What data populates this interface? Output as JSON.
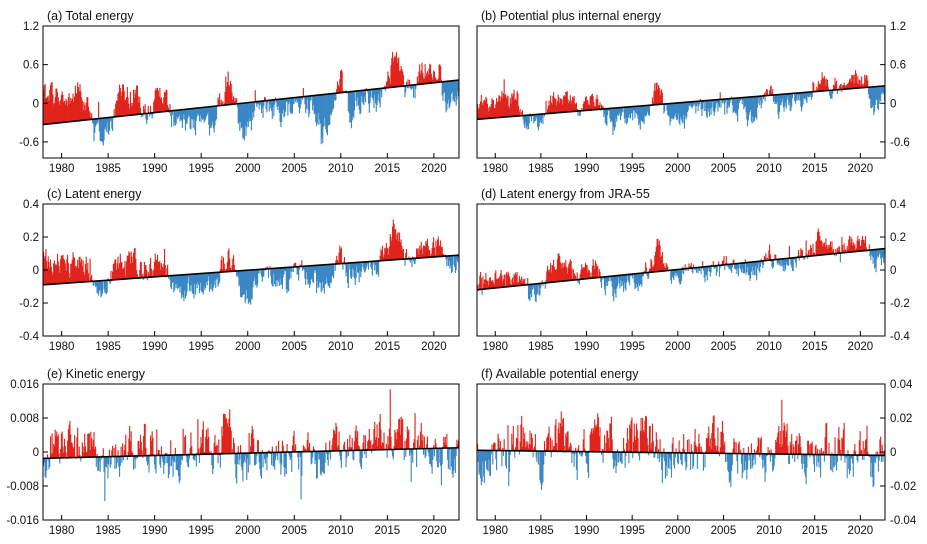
{
  "colors": {
    "positive": "#e0241c",
    "negative": "#3a87c4",
    "trend": "#000000"
  },
  "chart_data": [
    {
      "type": "area",
      "title": "(a) Total energy",
      "x_ticks": [
        "1980",
        "1985",
        "1990",
        "1995",
        "2000",
        "2005",
        "2010",
        "2015",
        "2020"
      ],
      "y_ticks": [
        "-0.6",
        "0",
        "0.6",
        "1.2"
      ],
      "y_axis_side": "left",
      "xlim": [
        1978.0,
        2022.7
      ],
      "ylim": [
        -0.85,
        1.2
      ],
      "trend": {
        "start": -0.33,
        "end": 0.36
      },
      "baseline_segments": [
        [
          1978.0,
          0.1
        ],
        [
          1979.0,
          0.15
        ],
        [
          1980.0,
          0.05
        ],
        [
          1981.0,
          0.08
        ],
        [
          1982.0,
          0.22
        ],
        [
          1982.7,
          -0.05
        ],
        [
          1983.5,
          -0.35
        ],
        [
          1984.3,
          -0.5
        ],
        [
          1985.0,
          -0.42
        ],
        [
          1986.0,
          0.05
        ],
        [
          1987.0,
          0.18
        ],
        [
          1988.0,
          0.12
        ],
        [
          1989.0,
          -0.2
        ],
        [
          1990.0,
          0.08
        ],
        [
          1991.0,
          0.12
        ],
        [
          1992.0,
          -0.28
        ],
        [
          1993.0,
          -0.4
        ],
        [
          1994.0,
          -0.32
        ],
        [
          1995.0,
          -0.22
        ],
        [
          1996.0,
          -0.38
        ],
        [
          1997.0,
          -0.02
        ],
        [
          1997.9,
          0.45
        ],
        [
          1998.5,
          0.05
        ],
        [
          1999.3,
          -0.42
        ],
        [
          2000.3,
          -0.36
        ],
        [
          2001.0,
          -0.1
        ],
        [
          2002.0,
          -0.05
        ],
        [
          2003.0,
          -0.08
        ],
        [
          2004.0,
          -0.18
        ],
        [
          2005.0,
          -0.02
        ],
        [
          2006.0,
          -0.1
        ],
        [
          2007.0,
          -0.05
        ],
        [
          2008.0,
          -0.4
        ],
        [
          2009.0,
          -0.08
        ],
        [
          2010.0,
          0.3
        ],
        [
          2011.0,
          -0.18
        ],
        [
          2012.0,
          -0.05
        ],
        [
          2013.0,
          0.0
        ],
        [
          2014.0,
          0.05
        ],
        [
          2015.0,
          0.3
        ],
        [
          2015.7,
          0.75
        ],
        [
          2016.3,
          0.55
        ],
        [
          2017.0,
          0.25
        ],
        [
          2018.0,
          0.2
        ],
        [
          2019.0,
          0.55
        ],
        [
          2020.0,
          0.48
        ],
        [
          2020.5,
          0.6
        ],
        [
          2021.0,
          0.15
        ],
        [
          2021.5,
          -0.12
        ],
        [
          2022.2,
          0.05
        ],
        [
          2022.7,
          0.1
        ]
      ],
      "noise": 0.16
    },
    {
      "type": "area",
      "title": "(b) Potential plus internal energy",
      "x_ticks": [
        "1980",
        "1985",
        "1990",
        "1995",
        "2000",
        "2005",
        "2010",
        "2015",
        "2020"
      ],
      "y_ticks": [
        "-0.6",
        "0",
        "0.6",
        "1.2"
      ],
      "y_axis_side": "right",
      "xlim": [
        1978.0,
        2022.7
      ],
      "ylim": [
        -0.85,
        1.2
      ],
      "trend": {
        "start": -0.25,
        "end": 0.27
      },
      "baseline_segments": [
        [
          1978.0,
          0.0
        ],
        [
          1979.0,
          0.05
        ],
        [
          1980.0,
          0.0
        ],
        [
          1981.0,
          0.03
        ],
        [
          1982.0,
          0.12
        ],
        [
          1982.7,
          -0.05
        ],
        [
          1983.5,
          -0.28
        ],
        [
          1984.3,
          -0.38
        ],
        [
          1985.0,
          -0.3
        ],
        [
          1986.0,
          0.02
        ],
        [
          1987.0,
          0.1
        ],
        [
          1988.0,
          0.06
        ],
        [
          1989.0,
          -0.15
        ],
        [
          1990.0,
          0.05
        ],
        [
          1991.0,
          0.08
        ],
        [
          1992.0,
          -0.2
        ],
        [
          1993.0,
          -0.28
        ],
        [
          1994.0,
          -0.24
        ],
        [
          1995.0,
          -0.16
        ],
        [
          1996.0,
          -0.28
        ],
        [
          1997.0,
          -0.02
        ],
        [
          1997.9,
          0.32
        ],
        [
          1998.5,
          0.02
        ],
        [
          1999.3,
          -0.32
        ],
        [
          2000.3,
          -0.28
        ],
        [
          2001.0,
          -0.08
        ],
        [
          2002.0,
          -0.04
        ],
        [
          2003.0,
          -0.06
        ],
        [
          2004.0,
          -0.14
        ],
        [
          2005.0,
          -0.02
        ],
        [
          2006.0,
          -0.08
        ],
        [
          2007.0,
          -0.04
        ],
        [
          2008.0,
          -0.3
        ],
        [
          2009.0,
          -0.06
        ],
        [
          2010.0,
          0.22
        ],
        [
          2011.0,
          -0.14
        ],
        [
          2012.0,
          -0.04
        ],
        [
          2013.0,
          0.0
        ],
        [
          2014.0,
          0.03
        ],
        [
          2015.0,
          0.22
        ],
        [
          2015.7,
          0.52
        ],
        [
          2016.3,
          0.4
        ],
        [
          2017.0,
          0.18
        ],
        [
          2018.0,
          0.14
        ],
        [
          2019.0,
          0.42
        ],
        [
          2020.0,
          0.36
        ],
        [
          2020.5,
          0.45
        ],
        [
          2021.0,
          0.1
        ],
        [
          2021.5,
          -0.1
        ],
        [
          2022.2,
          0.04
        ],
        [
          2022.7,
          0.08
        ]
      ],
      "noise": 0.12
    },
    {
      "type": "area",
      "title": "(c) Latent energy",
      "x_ticks": [
        "1980",
        "1985",
        "1990",
        "1995",
        "2000",
        "2005",
        "2010",
        "2015",
        "2020"
      ],
      "y_ticks": [
        "-0.4",
        "-0.2",
        "0",
        "0.2",
        "0.4"
      ],
      "y_axis_side": "left",
      "xlim": [
        1978.0,
        2022.7
      ],
      "ylim": [
        -0.4,
        0.4
      ],
      "trend": {
        "start": -0.09,
        "end": 0.09
      },
      "baseline_segments": [
        [
          1978.0,
          0.05
        ],
        [
          1979.0,
          0.06
        ],
        [
          1980.0,
          0.04
        ],
        [
          1981.0,
          0.03
        ],
        [
          1982.0,
          0.08
        ],
        [
          1982.7,
          0.02
        ],
        [
          1983.5,
          -0.04
        ],
        [
          1984.3,
          -0.1
        ],
        [
          1985.0,
          -0.06
        ],
        [
          1986.0,
          0.03
        ],
        [
          1987.0,
          0.1
        ],
        [
          1988.0,
          0.06
        ],
        [
          1989.0,
          -0.04
        ],
        [
          1990.0,
          0.04
        ],
        [
          1991.0,
          0.05
        ],
        [
          1992.0,
          -0.14
        ],
        [
          1993.0,
          -0.16
        ],
        [
          1994.0,
          -0.12
        ],
        [
          1995.0,
          -0.08
        ],
        [
          1996.0,
          -0.14
        ],
        [
          1997.0,
          -0.02
        ],
        [
          1997.9,
          0.1
        ],
        [
          1998.5,
          0.0
        ],
        [
          1999.3,
          -0.16
        ],
        [
          2000.3,
          -0.12
        ],
        [
          2001.0,
          -0.05
        ],
        [
          2002.0,
          -0.02
        ],
        [
          2003.0,
          -0.04
        ],
        [
          2004.0,
          -0.06
        ],
        [
          2005.0,
          0.0
        ],
        [
          2006.0,
          -0.03
        ],
        [
          2007.0,
          -0.02
        ],
        [
          2008.0,
          -0.12
        ],
        [
          2009.0,
          -0.02
        ],
        [
          2010.0,
          0.07
        ],
        [
          2011.0,
          -0.05
        ],
        [
          2012.0,
          -0.02
        ],
        [
          2013.0,
          0.0
        ],
        [
          2014.0,
          0.02
        ],
        [
          2015.0,
          0.1
        ],
        [
          2015.7,
          0.24
        ],
        [
          2016.3,
          0.18
        ],
        [
          2017.0,
          0.1
        ],
        [
          2018.0,
          0.09
        ],
        [
          2019.0,
          0.15
        ],
        [
          2020.0,
          0.14
        ],
        [
          2020.5,
          0.16
        ],
        [
          2021.0,
          0.06
        ],
        [
          2021.5,
          0.02
        ],
        [
          2022.2,
          0.04
        ],
        [
          2022.7,
          0.06
        ]
      ],
      "noise": 0.06
    },
    {
      "type": "area",
      "title": "(d) Latent energy from JRA-55",
      "x_ticks": [
        "1980",
        "1985",
        "1990",
        "1995",
        "2000",
        "2005",
        "2010",
        "2015",
        "2020"
      ],
      "y_ticks": [
        "-0.4",
        "-0.2",
        "0",
        "0.2",
        "0.4"
      ],
      "y_axis_side": "right",
      "xlim": [
        1978.0,
        2022.7
      ],
      "ylim": [
        -0.4,
        0.4
      ],
      "trend": {
        "start": -0.12,
        "end": 0.13
      },
      "baseline_segments": [
        [
          1978.0,
          -0.1
        ],
        [
          1979.0,
          -0.05
        ],
        [
          1980.0,
          -0.04
        ],
        [
          1981.0,
          -0.06
        ],
        [
          1982.0,
          -0.02
        ],
        [
          1982.7,
          -0.08
        ],
        [
          1983.5,
          -0.14
        ],
        [
          1984.3,
          -0.18
        ],
        [
          1985.0,
          -0.12
        ],
        [
          1986.0,
          -0.02
        ],
        [
          1987.0,
          0.06
        ],
        [
          1988.0,
          0.02
        ],
        [
          1989.0,
          -0.06
        ],
        [
          1990.0,
          0.0
        ],
        [
          1991.0,
          0.02
        ],
        [
          1992.0,
          -0.1
        ],
        [
          1993.0,
          -0.12
        ],
        [
          1994.0,
          -0.08
        ],
        [
          1995.0,
          -0.05
        ],
        [
          1996.0,
          -0.08
        ],
        [
          1997.0,
          0.02
        ],
        [
          1997.9,
          0.16
        ],
        [
          1998.5,
          0.04
        ],
        [
          1999.3,
          -0.1
        ],
        [
          2000.3,
          -0.06
        ],
        [
          2001.0,
          -0.02
        ],
        [
          2002.0,
          0.01
        ],
        [
          2003.0,
          0.0
        ],
        [
          2004.0,
          -0.02
        ],
        [
          2005.0,
          0.03
        ],
        [
          2006.0,
          0.02
        ],
        [
          2007.0,
          0.03
        ],
        [
          2008.0,
          -0.04
        ],
        [
          2009.0,
          0.03
        ],
        [
          2010.0,
          0.12
        ],
        [
          2011.0,
          0.02
        ],
        [
          2012.0,
          0.05
        ],
        [
          2013.0,
          0.06
        ],
        [
          2014.0,
          0.08
        ],
        [
          2015.0,
          0.14
        ],
        [
          2015.7,
          0.24
        ],
        [
          2016.3,
          0.2
        ],
        [
          2017.0,
          0.14
        ],
        [
          2018.0,
          0.15
        ],
        [
          2019.0,
          0.18
        ],
        [
          2020.0,
          0.17
        ],
        [
          2020.5,
          0.19
        ],
        [
          2021.0,
          0.1
        ],
        [
          2021.5,
          0.04
        ],
        [
          2022.2,
          0.06
        ],
        [
          2022.7,
          0.07
        ]
      ],
      "noise": 0.05
    },
    {
      "type": "area",
      "title": "(e) Kinetic energy",
      "x_ticks": [
        "1980",
        "1985",
        "1990",
        "1995",
        "2000",
        "2005",
        "2010",
        "2015",
        "2020"
      ],
      "y_ticks": [
        "-0.016",
        "-0.008",
        "0",
        "0.008",
        "0.016"
      ],
      "y_axis_side": "left",
      "xlim": [
        1978.0,
        2022.7
      ],
      "ylim": [
        -0.016,
        0.016
      ],
      "trend": {
        "start": -0.0015,
        "end": 0.001
      },
      "baseline_segments": [
        [
          1978.0,
          0.0
        ],
        [
          1982.0,
          0.001
        ],
        [
          1983.0,
          0.003
        ],
        [
          1984.5,
          -0.004
        ],
        [
          1986.0,
          0.0
        ],
        [
          1990.0,
          0.001
        ],
        [
          1992.0,
          -0.002
        ],
        [
          1994.0,
          0.0
        ],
        [
          1997.0,
          0.002
        ],
        [
          1997.9,
          0.007
        ],
        [
          1998.8,
          0.0
        ],
        [
          2000.0,
          -0.002
        ],
        [
          2004.0,
          0.0
        ],
        [
          2007.5,
          -0.003
        ],
        [
          2010.0,
          0.002
        ],
        [
          2012.0,
          0.0
        ],
        [
          2015.5,
          0.004
        ],
        [
          2016.5,
          0.001
        ],
        [
          2019.0,
          0.001
        ],
        [
          2021.0,
          -0.002
        ],
        [
          2022.7,
          0.0
        ]
      ],
      "noise": 0.0045
    },
    {
      "type": "area",
      "title": "(f) Available potential energy",
      "x_ticks": [
        "1980",
        "1985",
        "1990",
        "1995",
        "2000",
        "2005",
        "2010",
        "2015",
        "2020"
      ],
      "y_ticks": [
        "-0.04",
        "-0.02",
        "0",
        "0.02",
        "0.04"
      ],
      "y_axis_side": "right",
      "xlim": [
        1978.0,
        2022.7
      ],
      "ylim": [
        -0.04,
        0.04
      ],
      "trend": {
        "start": 0.001,
        "end": -0.002
      },
      "baseline_segments": [
        [
          1978.0,
          0.0
        ],
        [
          1980.0,
          0.002
        ],
        [
          1983.0,
          0.004
        ],
        [
          1985.0,
          -0.004
        ],
        [
          1987.0,
          0.008
        ],
        [
          1988.5,
          -0.003
        ],
        [
          1990.0,
          0.004
        ],
        [
          1992.0,
          0.006
        ],
        [
          1994.0,
          0.002
        ],
        [
          1996.0,
          0.01
        ],
        [
          1997.5,
          0.006
        ],
        [
          1999.0,
          -0.006
        ],
        [
          2001.0,
          0.0
        ],
        [
          2004.0,
          0.002
        ],
        [
          2007.0,
          0.0
        ],
        [
          2009.0,
          -0.004
        ],
        [
          2011.0,
          0.003
        ],
        [
          2013.0,
          -0.002
        ],
        [
          2015.5,
          0.005
        ],
        [
          2017.0,
          -0.002
        ],
        [
          2019.0,
          0.002
        ],
        [
          2021.0,
          -0.002
        ],
        [
          2022.7,
          -0.001
        ]
      ],
      "noise": 0.012
    }
  ]
}
